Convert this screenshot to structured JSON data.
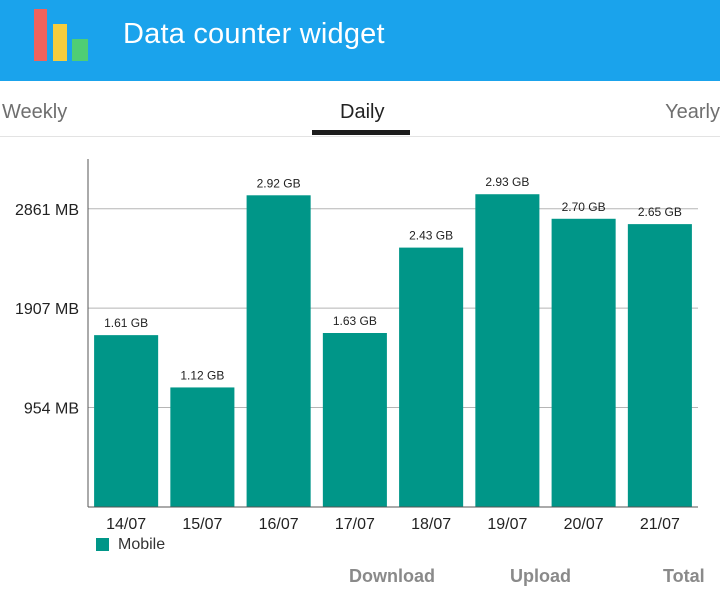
{
  "app": {
    "title": "Data counter widget",
    "colors": {
      "appbar": "#1aa3ec",
      "bar": "#009688",
      "icon_red": "#f0625c",
      "icon_yellow": "#f6cd3d",
      "icon_green": "#4fce74"
    }
  },
  "tabs": [
    {
      "label": "Weekly",
      "selected": false
    },
    {
      "label": "Daily",
      "selected": true
    },
    {
      "label": "Yearly",
      "selected": false
    }
  ],
  "chart_data": {
    "type": "bar",
    "categories": [
      "14/07",
      "15/07",
      "16/07",
      "17/07",
      "18/07",
      "19/07",
      "20/07",
      "21/07"
    ],
    "series": [
      {
        "name": "Mobile",
        "values": [
          1.61,
          1.12,
          2.92,
          1.63,
          2.43,
          2.93,
          2.7,
          2.65
        ],
        "labels": [
          "1.61 GB",
          "1.12 GB",
          "2.92 GB",
          "1.63 GB",
          "2.43 GB",
          "2.93 GB",
          "2.70 GB",
          "2.65 GB"
        ],
        "color": "#009688"
      }
    ],
    "y_ticks": [
      {
        "value": 0.9317,
        "label": "954 MB"
      },
      {
        "value": 1.8628,
        "label": "1907 MB"
      },
      {
        "value": 2.7939,
        "label": "2861 MB"
      }
    ],
    "ylim": [
      0,
      3.26
    ],
    "grid": true,
    "legend_position": "bottom-left"
  },
  "bottom_buttons": {
    "download": "Download",
    "upload": "Upload",
    "total": "Total"
  }
}
